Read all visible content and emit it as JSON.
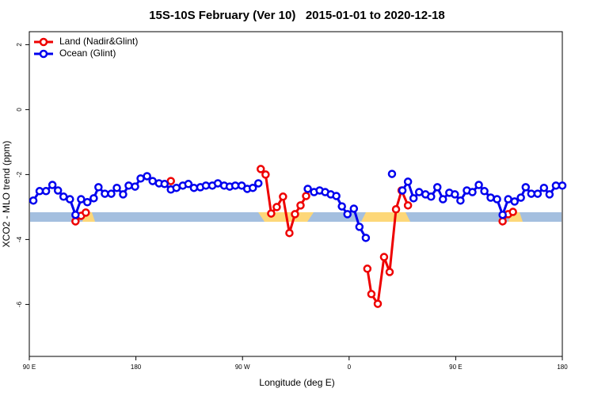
{
  "chart_data": {
    "type": "line",
    "title": "15S-10S February (Ver 10)   2015-01-01 to 2020-12-18",
    "x_label": "Longitude (deg E)",
    "y_label": "XCO2 - MLO trend (ppm)",
    "xlim": [
      90,
      540
    ],
    "xticks": [
      {
        "value": 90,
        "label": "90 E"
      },
      180,
      {
        "value": 270,
        "label": "90 W"
      },
      {
        "value": 360,
        "label": "0"
      },
      {
        "value": 450,
        "label": "90 E"
      },
      {
        "value": 540,
        "label": "180"
      }
    ],
    "ylim": [
      -7.6,
      2.4
    ],
    "yticks": [
      -6,
      -4,
      -2,
      0,
      2
    ],
    "legend": "top-left",
    "series": [
      {
        "name": "Land (Nadir&Glint)",
        "color": "#ee0000",
        "x": [
          129.0,
          133.7,
          137.7,
          null,
          209.5,
          null,
          285.4,
          289.5,
          294.2,
          298.9,
          304.2,
          309.6,
          314.3,
          319.0,
          323.7,
          null,
          375.4,
          378.8,
          384.2,
          389.5,
          394.2,
          399.6,
          404.3,
          409.7,
          null,
          489.6,
          494.3,
          498.3
        ],
        "values": [
          -3.44,
          -3.27,
          -3.17,
          null,
          -2.2,
          null,
          -1.83,
          -2.0,
          -3.2,
          -3.0,
          -2.68,
          -3.8,
          -3.22,
          -2.95,
          -2.66,
          null,
          -4.9,
          -5.68,
          -5.98,
          -4.54,
          -5.0,
          -3.07,
          -2.49,
          -2.95,
          null,
          -3.44,
          -3.22,
          -3.15
        ]
      },
      {
        "name": "Ocean (Glint)",
        "color": "#0000ee",
        "x": [
          93.4,
          98.7,
          104.1,
          109.5,
          114.2,
          118.9,
          124.3,
          129.0,
          133.7,
          139.0,
          144.4,
          148.4,
          153.8,
          159.2,
          163.9,
          169.2,
          173.9,
          179.3,
          184.0,
          189.4,
          194.1,
          199.5,
          204.2,
          209.5,
          214.2,
          219.6,
          224.3,
          229.0,
          234.4,
          239.1,
          244.5,
          249.2,
          254.5,
          259.2,
          263.9,
          269.3,
          274.0,
          278.7,
          283.4,
          null,
          325.1,
          330.4,
          335.1,
          339.8,
          344.5,
          349.2,
          353.9,
          358.6,
          364.0,
          368.7,
          374.1,
          null,
          396.2,
          null,
          405.0,
          409.7,
          414.4,
          419.1,
          424.5,
          429.2,
          434.5,
          439.2,
          444.6,
          449.3,
          454.0,
          459.4,
          464.1,
          469.5,
          474.2,
          479.5,
          484.9,
          489.6,
          494.3,
          499.7,
          505.0,
          509.1,
          513.8,
          519.2,
          524.5,
          529.2,
          534.6,
          540.0
        ],
        "values": [
          -2.8,
          -2.51,
          -2.51,
          -2.32,
          -2.49,
          -2.68,
          -2.76,
          -3.24,
          -2.76,
          -2.85,
          -2.73,
          -2.39,
          -2.59,
          -2.59,
          -2.41,
          -2.61,
          -2.34,
          -2.37,
          -2.12,
          -2.05,
          -2.2,
          -2.27,
          -2.29,
          -2.46,
          -2.41,
          -2.34,
          -2.29,
          -2.41,
          -2.39,
          -2.34,
          -2.34,
          -2.27,
          -2.34,
          -2.37,
          -2.34,
          -2.34,
          -2.44,
          -2.41,
          -2.27,
          null,
          -2.44,
          -2.54,
          -2.49,
          -2.54,
          -2.61,
          -2.66,
          -2.98,
          -3.22,
          -3.05,
          -3.61,
          -3.95,
          null,
          -1.98,
          null,
          -2.49,
          -2.22,
          -2.73,
          -2.54,
          -2.61,
          -2.68,
          -2.39,
          -2.76,
          -2.56,
          -2.61,
          -2.8,
          -2.49,
          -2.54,
          -2.32,
          -2.51,
          -2.71,
          -2.76,
          -3.24,
          -2.76,
          -2.83,
          -2.71,
          -2.39,
          -2.59,
          -2.59,
          -2.41,
          -2.61,
          -2.34,
          -2.34
        ]
      }
    ]
  }
}
